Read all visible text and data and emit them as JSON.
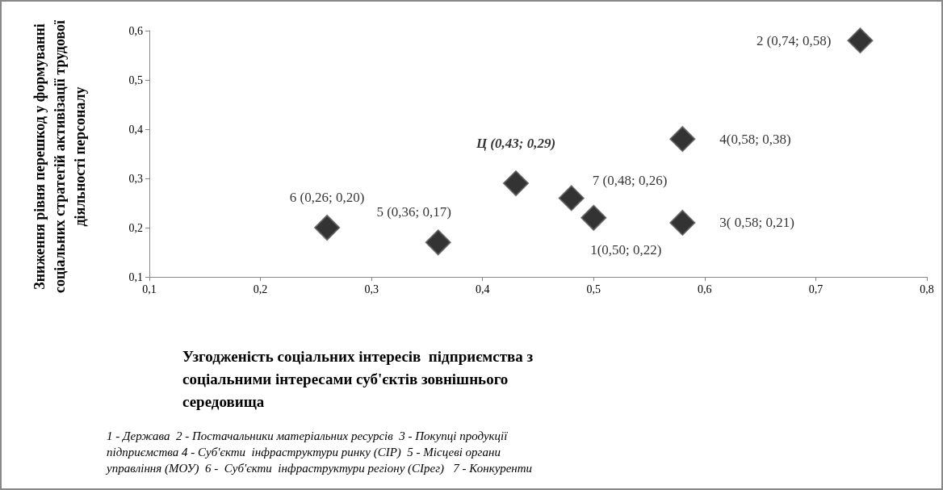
{
  "chart_data": {
    "type": "scatter",
    "xlabel": "Узгодженість соціальних інтересів  підприємства з соціальними інтересами суб'єктів зовнішнього середовища",
    "ylabel": "Зниження рівня перешкод у формуванні соціальних стратегій активізації трудової діяльності персоналу",
    "x": [
      0.5,
      0.74,
      0.58,
      0.58,
      0.36,
      0.26,
      0.48,
      0.43
    ],
    "values": [
      0.22,
      0.58,
      0.21,
      0.38,
      0.17,
      0.2,
      0.26,
      0.29
    ],
    "value_labels": [
      "1(0,50; 0,22)",
      "2 (0,74; 0,58)",
      "3( 0,58; 0,21)",
      "4(0,58; 0,38)",
      "5 (0,36; 0,17)",
      "6 (0,26; 0,20)",
      "7 (0,48; 0,26)",
      "Ц (0,43; 0,29)"
    ],
    "color": "#000000",
    "marker": "diamond",
    "grid": false,
    "xlim": [
      0.1,
      0.8
    ],
    "xticks": [
      {
        "value": 0.1,
        "label": "0,1"
      },
      {
        "value": 0.2,
        "label": "0,2"
      },
      {
        "value": 0.3,
        "label": "0,3"
      },
      {
        "value": 0.4,
        "label": "0,4"
      },
      {
        "value": 0.5,
        "label": "0,5"
      },
      {
        "value": 0.6,
        "label": "0,6"
      },
      {
        "value": 0.7,
        "label": "0,7"
      },
      {
        "value": 0.8,
        "label": "0,8"
      }
    ],
    "ylim": [
      0.1,
      0.6
    ],
    "yticks": [
      {
        "value": 0.1,
        "label": "0,1"
      },
      {
        "value": 0.2,
        "label": "0,2"
      },
      {
        "value": 0.3,
        "label": "0,3"
      },
      {
        "value": 0.4,
        "label": "0,4"
      },
      {
        "value": 0.5,
        "label": "0,5"
      },
      {
        "value": 0.6,
        "label": "0,6"
      }
    ],
    "annotations": [
      "1 - Держава  2 - Постачальники матеріальних ресурсів  3 - Покупці продукції підприємства 4 - Суб'єкти  інфраструктури ринку (СІР)  5 - Місцеві органи управління (МОУ)  6 -  Суб'єкти  інфраструктури регіону (СІрег)   7 - Конкуренти"
    ]
  }
}
